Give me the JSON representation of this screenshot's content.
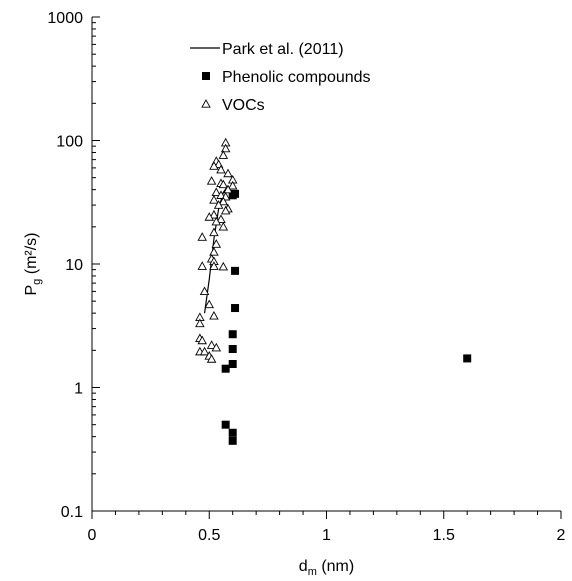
{
  "chart_data": {
    "type": "scatter",
    "x_axis": {
      "label_main": "d",
      "label_sub": "m",
      "label_unit": " (nm)",
      "range": [
        0,
        2
      ],
      "ticks": [
        0,
        0.5,
        1,
        1.5,
        2
      ],
      "tick_labels": [
        "0",
        "0.5",
        "1",
        "1.5",
        "2"
      ],
      "scale": "linear"
    },
    "y_axis": {
      "label_main": "P",
      "label_sub": "g",
      "label_unit": " (m²/s)",
      "range": [
        0.1,
        1000
      ],
      "ticks": [
        0.1,
        1,
        10,
        100,
        1000
      ],
      "tick_labels": [
        "0.1",
        "1",
        "10",
        "100",
        "1000"
      ],
      "scale": "log"
    },
    "grid": false,
    "legend": {
      "placement": "top-left",
      "entries": [
        {
          "label": "Park et al. (2011)",
          "marker": "line"
        },
        {
          "label": "Phenolic compounds",
          "marker": "filled-square"
        },
        {
          "label": "VOCs",
          "marker": "open-triangle"
        }
      ]
    },
    "series": [
      {
        "name": "Park et al. (2011)",
        "kind": "line",
        "color": "#000000",
        "points": [
          [
            0.48,
            4.0
          ],
          [
            0.5,
            7.5
          ],
          [
            0.52,
            16.0
          ],
          [
            0.54,
            28.0
          ],
          [
            0.56,
            38.0
          ],
          [
            0.58,
            43.0
          ]
        ]
      },
      {
        "name": "Phenolic compounds",
        "kind": "marker",
        "marker": "filled-square",
        "color": "#000000",
        "points": [
          [
            0.6,
            36.0
          ],
          [
            0.61,
            37.0
          ],
          [
            0.61,
            8.8
          ],
          [
            0.61,
            4.4
          ],
          [
            0.6,
            2.7
          ],
          [
            0.6,
            2.05
          ],
          [
            0.6,
            1.55
          ],
          [
            0.57,
            1.42
          ],
          [
            0.57,
            0.5
          ],
          [
            0.6,
            0.43
          ],
          [
            0.6,
            0.37
          ],
          [
            1.6,
            1.72
          ]
        ]
      },
      {
        "name": "VOCs",
        "kind": "marker",
        "marker": "open-triangle",
        "color": "#000000",
        "points": [
          [
            0.57,
            96
          ],
          [
            0.57,
            86
          ],
          [
            0.56,
            76
          ],
          [
            0.53,
            68
          ],
          [
            0.54,
            64
          ],
          [
            0.52,
            62
          ],
          [
            0.55,
            58
          ],
          [
            0.58,
            54
          ],
          [
            0.6,
            48
          ],
          [
            0.51,
            47
          ],
          [
            0.55,
            45
          ],
          [
            0.56,
            44
          ],
          [
            0.6,
            43
          ],
          [
            0.58,
            40
          ],
          [
            0.53,
            38
          ],
          [
            0.55,
            36
          ],
          [
            0.57,
            35
          ],
          [
            0.52,
            33
          ],
          [
            0.56,
            32
          ],
          [
            0.54,
            30
          ],
          [
            0.58,
            28
          ],
          [
            0.57,
            27
          ],
          [
            0.52,
            25
          ],
          [
            0.5,
            24
          ],
          [
            0.55,
            23
          ],
          [
            0.53,
            22
          ],
          [
            0.56,
            20
          ],
          [
            0.52,
            18
          ],
          [
            0.47,
            16.5
          ],
          [
            0.53,
            14.5
          ],
          [
            0.52,
            12.5
          ],
          [
            0.51,
            11
          ],
          [
            0.52,
            10.5
          ],
          [
            0.47,
            9.6
          ],
          [
            0.52,
            9.6
          ],
          [
            0.56,
            9.5
          ],
          [
            0.48,
            6.0
          ],
          [
            0.5,
            4.7
          ],
          [
            0.52,
            3.8
          ],
          [
            0.46,
            3.7
          ],
          [
            0.46,
            3.3
          ],
          [
            0.46,
            2.5
          ],
          [
            0.47,
            2.4
          ],
          [
            0.51,
            2.2
          ],
          [
            0.53,
            2.1
          ],
          [
            0.46,
            1.95
          ],
          [
            0.48,
            1.95
          ],
          [
            0.5,
            1.8
          ],
          [
            0.51,
            1.7
          ]
        ]
      }
    ]
  }
}
